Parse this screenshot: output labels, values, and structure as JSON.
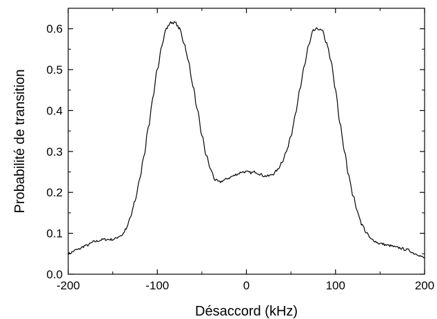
{
  "chart_data": {
    "type": "line",
    "title": "",
    "xlabel": "Désaccord (kHz)",
    "ylabel": "Probabilité de transition",
    "xlim": [
      -200,
      200
    ],
    "ylim": [
      0.0,
      0.65
    ],
    "xticks": [
      -200,
      -100,
      0,
      100,
      200
    ],
    "xtick_labels": [
      "-200",
      "-100",
      "0",
      "100",
      "200"
    ],
    "yticks": [
      0.0,
      0.1,
      0.2,
      0.3,
      0.4,
      0.5,
      0.6
    ],
    "ytick_labels": [
      "0.0",
      "0.1",
      "0.2",
      "0.3",
      "0.4",
      "0.5",
      "0.6"
    ],
    "grid": false,
    "legend": "none",
    "line_color": "#000000",
    "series": [
      {
        "x": [
          -200,
          -190,
          -180,
          -170,
          -160,
          -150,
          -140,
          -135,
          -130,
          -125,
          -120,
          -115,
          -110,
          -105,
          -100,
          -95,
          -90,
          -85,
          -80,
          -75,
          -70,
          -65,
          -60,
          -55,
          -50,
          -45,
          -40,
          -35,
          -30,
          -25,
          -20,
          -15,
          -10,
          -5,
          0,
          5,
          10,
          15,
          20,
          25,
          30,
          35,
          40,
          45,
          50,
          55,
          60,
          65,
          70,
          75,
          80,
          85,
          90,
          95,
          100,
          105,
          110,
          115,
          120,
          125,
          130,
          135,
          140,
          150,
          160,
          170,
          180,
          190,
          200
        ],
        "values": [
          0.05,
          0.06,
          0.07,
          0.08,
          0.085,
          0.085,
          0.095,
          0.11,
          0.14,
          0.18,
          0.23,
          0.29,
          0.36,
          0.43,
          0.5,
          0.56,
          0.6,
          0.615,
          0.615,
          0.6,
          0.565,
          0.52,
          0.46,
          0.4,
          0.34,
          0.29,
          0.255,
          0.23,
          0.225,
          0.23,
          0.235,
          0.24,
          0.245,
          0.25,
          0.25,
          0.248,
          0.25,
          0.245,
          0.24,
          0.24,
          0.245,
          0.255,
          0.275,
          0.3,
          0.34,
          0.39,
          0.45,
          0.51,
          0.56,
          0.595,
          0.6,
          0.595,
          0.565,
          0.52,
          0.45,
          0.37,
          0.3,
          0.24,
          0.19,
          0.15,
          0.12,
          0.1,
          0.085,
          0.075,
          0.07,
          0.065,
          0.06,
          0.05,
          0.04
        ]
      }
    ]
  }
}
